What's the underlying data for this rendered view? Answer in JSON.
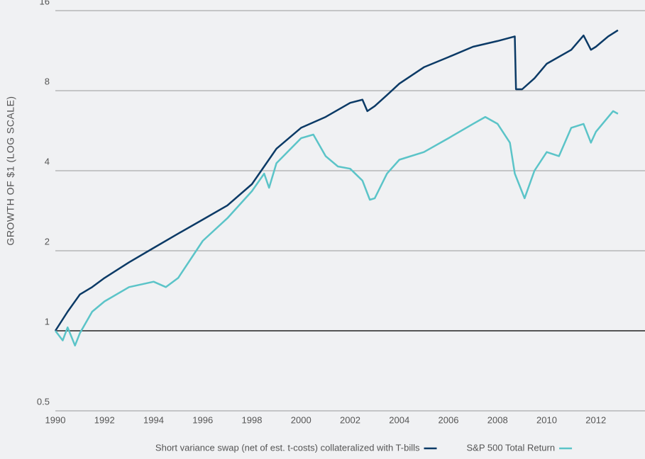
{
  "chart_data": {
    "type": "line",
    "y_label": "GROWTH OF $1 (LOG SCALE)",
    "log_scale": true,
    "grid": true,
    "legend": "bottom",
    "hline": 1,
    "xlim": [
      1990,
      2014
    ],
    "xticks": [
      1990,
      1992,
      1994,
      1996,
      1998,
      2000,
      2002,
      2004,
      2006,
      2008,
      2010,
      2012
    ],
    "ylim": [
      0.5,
      16
    ],
    "yticks": [
      0.5,
      1,
      2,
      4,
      8,
      16
    ],
    "series": [
      {
        "name": "Short variance swap (net of est. t-costs) collateralized with T-bills",
        "color": "#0b3a66",
        "x": [
          1990,
          1990.5,
          1991,
          1991.5,
          1992,
          1993,
          1994,
          1995,
          1996,
          1997,
          1998,
          1998.5,
          1999,
          2000,
          2001,
          2002,
          2002.5,
          2002.7,
          2003,
          2003.5,
          2004,
          2005,
          2006,
          2007,
          2008,
          2008.7,
          2008.75,
          2009,
          2009.5,
          2010,
          2011,
          2011.5,
          2011.8,
          2012,
          2012.5,
          2012.9
        ],
        "values": [
          1,
          1.18,
          1.37,
          1.46,
          1.58,
          1.81,
          2.05,
          2.32,
          2.62,
          2.96,
          3.56,
          4.15,
          4.84,
          5.8,
          6.37,
          7.2,
          7.4,
          6.7,
          7.0,
          7.7,
          8.5,
          9.8,
          10.7,
          11.7,
          12.3,
          12.8,
          8.1,
          8.1,
          8.9,
          10.1,
          11.4,
          12.9,
          11.4,
          11.7,
          12.8,
          13.5
        ]
      },
      {
        "name": "S&P 500 Total Return",
        "color": "#5bc4c8",
        "x": [
          1990,
          1990.3,
          1990.5,
          1990.8,
          1991,
          1991.5,
          1992,
          1993,
          1994,
          1994.5,
          1995,
          1996,
          1997,
          1998,
          1998.5,
          1998.7,
          1999,
          2000,
          2000.5,
          2001,
          2001.5,
          2002,
          2002.5,
          2002.8,
          2003,
          2003.5,
          2004,
          2005,
          2006,
          2007,
          2007.5,
          2008,
          2008.5,
          2008.7,
          2009.1,
          2009.5,
          2010,
          2010.5,
          2011,
          2011.5,
          2011.8,
          2012,
          2012.7,
          2012.9
        ],
        "values": [
          1,
          0.92,
          1.03,
          0.88,
          0.98,
          1.18,
          1.29,
          1.46,
          1.53,
          1.46,
          1.58,
          2.18,
          2.65,
          3.35,
          3.9,
          3.45,
          4.27,
          5.3,
          5.47,
          4.54,
          4.15,
          4.07,
          3.67,
          3.11,
          3.15,
          3.9,
          4.4,
          4.7,
          5.3,
          6.0,
          6.37,
          6.0,
          5.1,
          3.9,
          3.15,
          4.0,
          4.7,
          4.54,
          5.8,
          6.0,
          5.1,
          5.6,
          6.7,
          6.55
        ]
      }
    ]
  }
}
